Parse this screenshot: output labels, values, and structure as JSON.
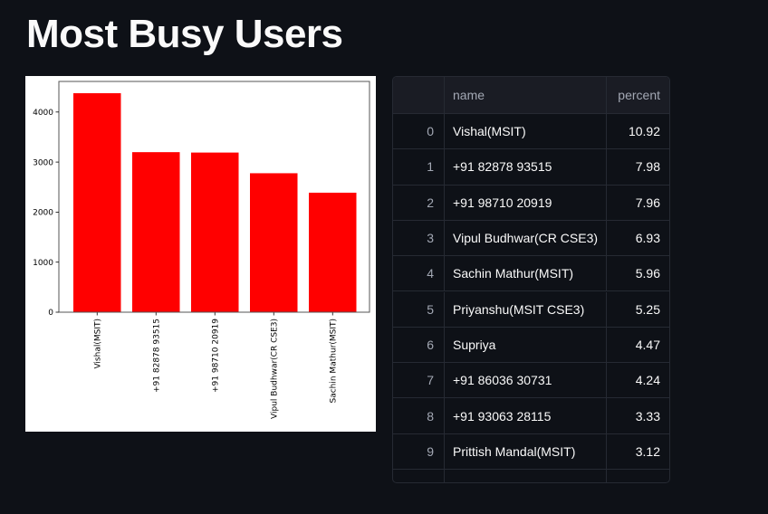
{
  "page": {
    "title": "Most Busy Users",
    "background": "#0e1117"
  },
  "chart_data": {
    "type": "bar",
    "title": "",
    "xlabel": "",
    "ylabel": "",
    "categories": [
      "Vishal(MSIT)",
      "+91 82878 93515",
      "+91 98710 20919",
      "Vipul Budhwar(CR CSE3)",
      "Sachin Mathur(MSIT)"
    ],
    "values": [
      4376,
      3198,
      3190,
      2777,
      2388
    ],
    "ylim": [
      0,
      4600
    ],
    "yticks": [
      0,
      1000,
      2000,
      3000,
      4000
    ],
    "ytick_labels": [
      "0",
      "1000",
      "2000",
      "3000",
      "4000"
    ],
    "xtick_rotation": 90,
    "bar_color": "#ff0000",
    "grid": false,
    "legend": null
  },
  "table": {
    "columns": [
      "",
      "name",
      "percent"
    ],
    "rows": [
      {
        "index": "0",
        "name": "Vishal(MSIT)",
        "percent": "10.92"
      },
      {
        "index": "1",
        "name": "+91 82878 93515",
        "percent": "7.98"
      },
      {
        "index": "2",
        "name": "+91 98710 20919",
        "percent": "7.96"
      },
      {
        "index": "3",
        "name": "Vipul Budhwar(CR CSE3)",
        "percent": "6.93"
      },
      {
        "index": "4",
        "name": "Sachin Mathur(MSIT)",
        "percent": "5.96"
      },
      {
        "index": "5",
        "name": "Priyanshu(MSIT CSE3)",
        "percent": "5.25"
      },
      {
        "index": "6",
        "name": "Supriya",
        "percent": "4.47"
      },
      {
        "index": "7",
        "name": "+91 86036 30731",
        "percent": "4.24"
      },
      {
        "index": "8",
        "name": "+91 93063 28115",
        "percent": "3.33"
      },
      {
        "index": "9",
        "name": "Prittish Mandal(MSIT)",
        "percent": "3.12"
      }
    ]
  }
}
